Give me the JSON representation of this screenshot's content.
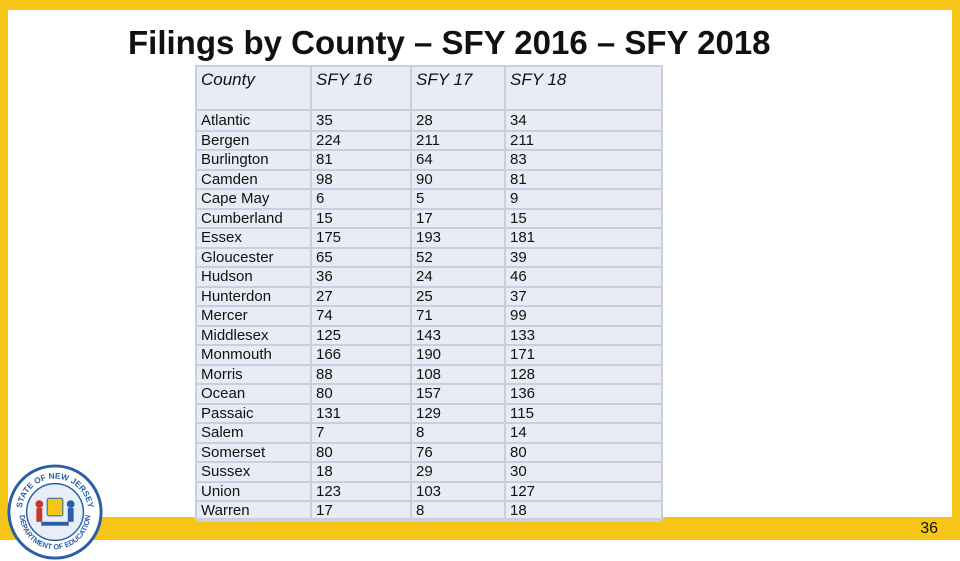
{
  "title": "Filings by County – SFY 2016 – SFY 2018",
  "page_number": "36",
  "colors": {
    "accent": "#f5c518",
    "table_bg": "#e9ecf4",
    "grid": "#c9cfe0"
  },
  "seal": {
    "icon": "nj-department-of-education-seal-icon",
    "text_top": "STATE OF NEW JERSEY",
    "text_bottom": "DEPARTMENT OF EDUCATION"
  },
  "table": {
    "headers": [
      "County",
      "SFY 16",
      "SFY 17",
      "SFY 18"
    ],
    "counties": [
      "Atlantic",
      "Bergen",
      "Burlington",
      "Camden",
      "Cape May",
      "Cumberland",
      "Essex",
      "Gloucester",
      "Hudson",
      "Hunterdon",
      "Mercer",
      "Middlesex",
      "Monmouth",
      "Morris",
      "Ocean",
      "Passaic",
      "Salem",
      "Somerset",
      "Sussex",
      "Union",
      "Warren"
    ],
    "sfy16": [
      "35",
      "224",
      "81",
      "98",
      "6",
      "15",
      "175",
      "65",
      "36",
      "27",
      "74",
      "125",
      "166",
      "88",
      "80",
      "131",
      "7",
      "80",
      "18",
      "123",
      "17"
    ],
    "sfy17": [
      "28",
      "211",
      "64",
      "90",
      "5",
      "17",
      "193",
      "52",
      "24",
      "25",
      "71",
      "143",
      "190",
      "108",
      "157",
      "129",
      "8",
      "76",
      "29",
      "103",
      "8"
    ],
    "sfy18": [
      "34",
      "211",
      "83",
      "81",
      "9",
      "15",
      "181",
      "39",
      "46",
      "37",
      "99",
      "133",
      "171",
      "128",
      "136",
      "115",
      "14",
      "80",
      "30",
      "127",
      "18"
    ]
  }
}
